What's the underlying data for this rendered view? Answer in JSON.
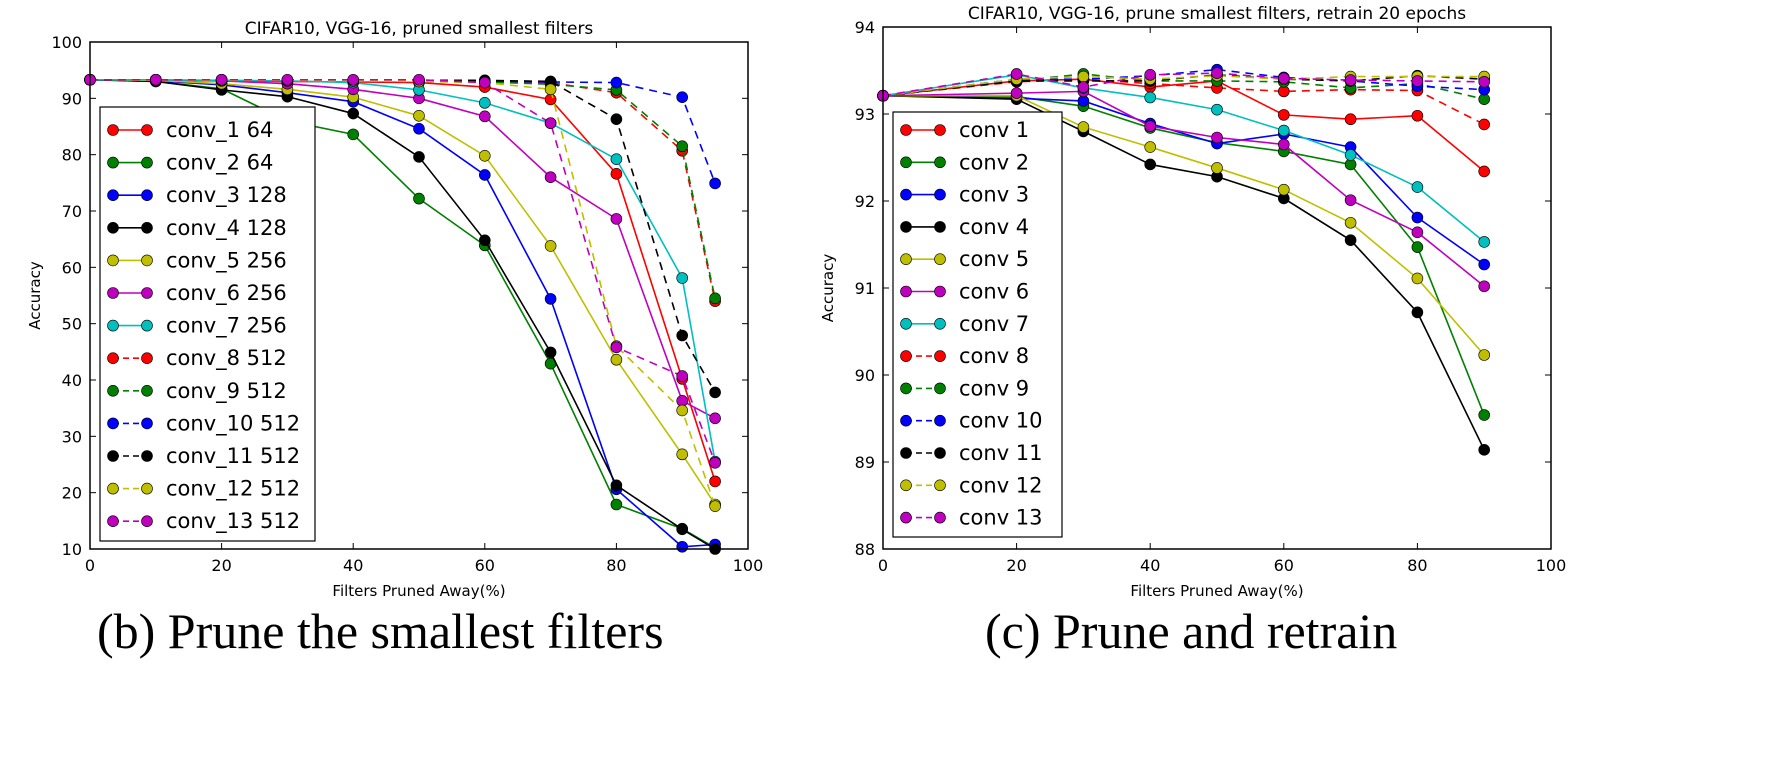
{
  "captions": [
    "(b) Prune the smallest filters",
    "(c) Prune and retrain"
  ],
  "chart_data": [
    {
      "type": "line",
      "title": "CIFAR10, VGG-16, pruned smallest filters",
      "xlabel": "Filters Pruned Away(%)",
      "ylabel": "Accuracy",
      "xlim": [
        0,
        100
      ],
      "ylim": [
        10,
        100
      ],
      "xticks": [
        0,
        20,
        40,
        60,
        80,
        100
      ],
      "yticks": [
        10,
        20,
        30,
        40,
        50,
        60,
        70,
        80,
        90,
        100
      ],
      "grid": false,
      "legend": "left",
      "x": [
        0,
        10,
        20,
        30,
        40,
        50,
        60,
        70,
        80,
        90,
        95
      ],
      "series": [
        {
          "name": "conv_1 64",
          "color": "#ff0000",
          "dashed": false,
          "values": [
            93.3,
            93.2,
            93.1,
            93.0,
            92.9,
            92.8,
            92.0,
            89.8,
            76.6,
            40.2,
            22.0
          ]
        },
        {
          "name": "conv_2 64",
          "color": "#008000",
          "dashed": false,
          "values": [
            93.3,
            93.0,
            91.7,
            86.0,
            83.6,
            72.2,
            63.9,
            42.9,
            17.9,
            13.6,
            10.2
          ]
        },
        {
          "name": "conv_3 128",
          "color": "#0000ff",
          "dashed": false,
          "values": [
            93.3,
            93.1,
            92.4,
            91.0,
            89.4,
            84.6,
            76.4,
            54.4,
            20.6,
            10.4,
            10.8
          ]
        },
        {
          "name": "conv_4 128",
          "color": "#000000",
          "dashed": false,
          "values": [
            93.3,
            93.0,
            91.5,
            90.3,
            87.3,
            79.6,
            64.8,
            44.9,
            21.3,
            13.5,
            10.0
          ]
        },
        {
          "name": "conv_5 256",
          "color": "#bfbf00",
          "dashed": false,
          "values": [
            93.3,
            93.2,
            92.6,
            91.6,
            90.2,
            86.9,
            79.8,
            63.8,
            43.6,
            26.8,
            17.9
          ]
        },
        {
          "name": "conv_6 256",
          "color": "#bf00bf",
          "dashed": false,
          "values": [
            93.3,
            93.3,
            93.1,
            92.6,
            91.6,
            90.0,
            86.8,
            76.0,
            68.6,
            36.3,
            33.2
          ]
        },
        {
          "name": "conv_7 256",
          "color": "#00bfbf",
          "dashed": false,
          "values": [
            93.3,
            93.3,
            93.2,
            93.1,
            92.8,
            91.5,
            89.2,
            85.6,
            79.2,
            58.1,
            25.5
          ]
        },
        {
          "name": "conv_8 512",
          "color": "#ff0000",
          "dashed": true,
          "values": [
            93.3,
            93.3,
            93.2,
            93.2,
            93.1,
            93.0,
            92.9,
            92.8,
            91.0,
            80.7,
            54.0
          ]
        },
        {
          "name": "conv_9 512",
          "color": "#008000",
          "dashed": true,
          "values": [
            93.3,
            93.3,
            93.2,
            93.2,
            93.1,
            93.1,
            92.9,
            92.5,
            91.5,
            81.5,
            54.5
          ]
        },
        {
          "name": "conv_10 512",
          "color": "#0000ff",
          "dashed": true,
          "values": [
            93.3,
            93.3,
            93.3,
            93.2,
            93.2,
            93.2,
            93.1,
            92.9,
            92.8,
            90.2,
            74.9
          ]
        },
        {
          "name": "conv_11 512",
          "color": "#000000",
          "dashed": true,
          "values": [
            93.3,
            93.3,
            93.3,
            93.2,
            93.2,
            93.2,
            93.2,
            93.0,
            86.3,
            47.9,
            37.8
          ]
        },
        {
          "name": "conv_12 512",
          "color": "#bfbf00",
          "dashed": true,
          "values": [
            93.3,
            93.3,
            93.2,
            93.2,
            93.1,
            93.0,
            92.8,
            91.6,
            46.0,
            34.6,
            17.6
          ]
        },
        {
          "name": "conv_13 512",
          "color": "#bf00bf",
          "dashed": true,
          "values": [
            93.3,
            93.3,
            93.3,
            93.3,
            93.3,
            93.3,
            92.8,
            85.6,
            45.8,
            40.7,
            25.3
          ]
        }
      ]
    },
    {
      "type": "line",
      "title": "CIFAR10, VGG-16, prune smallest filters, retrain 20 epochs",
      "xlabel": "Filters Pruned Away(%)",
      "ylabel": "Accuracy",
      "xlim": [
        0,
        100
      ],
      "ylim": [
        88,
        94
      ],
      "xticks": [
        0,
        20,
        40,
        60,
        80,
        100
      ],
      "yticks": [
        88,
        89,
        90,
        91,
        92,
        93,
        94
      ],
      "grid": false,
      "legend": "left",
      "x": [
        0,
        20,
        30,
        40,
        50,
        60,
        70,
        80,
        90
      ],
      "series": [
        {
          "name": "conv 1",
          "color": "#ff0000",
          "dashed": false,
          "values": [
            93.21,
            93.38,
            93.4,
            93.31,
            93.38,
            92.99,
            92.94,
            92.98,
            92.34
          ]
        },
        {
          "name": "conv 2",
          "color": "#008000",
          "dashed": false,
          "values": [
            93.21,
            93.2,
            93.09,
            92.84,
            92.67,
            92.57,
            92.42,
            91.47,
            89.54
          ]
        },
        {
          "name": "conv 3",
          "color": "#0000ff",
          "dashed": false,
          "values": [
            93.21,
            93.18,
            93.15,
            92.89,
            92.66,
            92.77,
            92.62,
            91.81,
            91.27
          ]
        },
        {
          "name": "conv 4",
          "color": "#000000",
          "dashed": false,
          "values": [
            93.21,
            93.17,
            92.8,
            92.42,
            92.28,
            92.03,
            91.55,
            90.72,
            89.14
          ]
        },
        {
          "name": "conv 5",
          "color": "#bfbf00",
          "dashed": false,
          "values": [
            93.21,
            93.21,
            92.85,
            92.62,
            92.38,
            92.13,
            91.75,
            91.11,
            90.23
          ]
        },
        {
          "name": "conv 6",
          "color": "#bf00bf",
          "dashed": false,
          "values": [
            93.21,
            93.24,
            93.26,
            92.86,
            92.73,
            92.65,
            92.01,
            91.64,
            91.02
          ]
        },
        {
          "name": "conv 7",
          "color": "#00bfbf",
          "dashed": false,
          "values": [
            93.21,
            93.45,
            93.3,
            93.19,
            93.05,
            92.81,
            92.53,
            92.16,
            91.53
          ]
        },
        {
          "name": "conv 8",
          "color": "#ff0000",
          "dashed": true,
          "values": [
            93.21,
            93.37,
            93.4,
            93.35,
            93.3,
            93.26,
            93.28,
            93.27,
            92.88
          ]
        },
        {
          "name": "conv 9",
          "color": "#008000",
          "dashed": true,
          "values": [
            93.21,
            93.38,
            93.46,
            93.38,
            93.38,
            93.37,
            93.3,
            93.35,
            93.17
          ]
        },
        {
          "name": "conv 10",
          "color": "#0000ff",
          "dashed": true,
          "values": [
            93.21,
            93.4,
            93.4,
            93.44,
            93.51,
            93.42,
            93.38,
            93.32,
            93.28
          ]
        },
        {
          "name": "conv 11",
          "color": "#000000",
          "dashed": true,
          "values": [
            93.21,
            93.38,
            93.38,
            93.38,
            93.45,
            93.4,
            93.38,
            93.44,
            93.4
          ]
        },
        {
          "name": "conv 12",
          "color": "#bfbf00",
          "dashed": true,
          "values": [
            93.21,
            93.4,
            93.43,
            93.4,
            93.44,
            93.4,
            93.43,
            93.43,
            93.43
          ]
        },
        {
          "name": "conv 13",
          "color": "#bf00bf",
          "dashed": true,
          "values": [
            93.21,
            93.46,
            93.31,
            93.45,
            93.47,
            93.41,
            93.39,
            93.38,
            93.37
          ]
        }
      ]
    }
  ]
}
